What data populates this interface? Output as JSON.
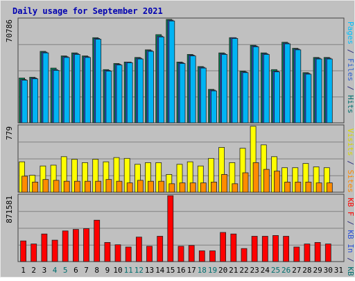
{
  "chart_data": [
    {
      "type": "bar",
      "title": "Daily usage for September 2021",
      "panel": "top",
      "ymax_label": "70786",
      "categories": [
        "1",
        "2",
        "3",
        "4",
        "5",
        "6",
        "7",
        "8",
        "9",
        "10",
        "11",
        "12",
        "13",
        "14",
        "15",
        "16",
        "17",
        "18",
        "19",
        "20",
        "21",
        "22",
        "23",
        "24",
        "25",
        "26",
        "27",
        "28",
        "29",
        "30",
        "31"
      ],
      "weekend_days": [
        "4",
        "5",
        "11",
        "12",
        "18",
        "19",
        "25",
        "26"
      ],
      "ylabel_parts": [
        {
          "text": "Pages",
          "color": "#00c0ff"
        },
        {
          "text": " / ",
          "color": "#303080"
        },
        {
          "text": "Files",
          "color": "#3060d0"
        },
        {
          "text": " / ",
          "color": "#303080"
        },
        {
          "text": "Hits",
          "color": "#006f6f"
        }
      ],
      "series": [
        {
          "color": "#008a5a",
          "values": [
            29500,
            30000,
            47000,
            36000,
            44000,
            46000,
            44000,
            56000,
            35000,
            39000,
            40000,
            43000,
            48000,
            58000,
            68000,
            40000,
            45000,
            37000,
            22000,
            46000,
            56000,
            34000,
            51000,
            46000,
            35000,
            53000,
            49000,
            33000,
            43000,
            43000,
            0
          ]
        },
        {
          "color": "#2a50d8",
          "values": [
            28500,
            29500,
            46500,
            35000,
            43500,
            45500,
            43500,
            55500,
            34500,
            38500,
            40000,
            42500,
            47500,
            57000,
            67500,
            39500,
            44500,
            36500,
            21500,
            45500,
            56000,
            33500,
            50500,
            45500,
            34000,
            52500,
            48500,
            32500,
            42500,
            42500,
            0
          ]
        },
        {
          "color": "#00b4f4",
          "values": [
            28000,
            29000,
            46000,
            34500,
            43000,
            45000,
            43000,
            55000,
            34000,
            38000,
            39500,
            42000,
            47000,
            56500,
            67000,
            39000,
            44000,
            36000,
            21000,
            45000,
            55500,
            33000,
            50000,
            45000,
            33500,
            52000,
            48000,
            32000,
            42000,
            42000,
            0
          ]
        }
      ]
    },
    {
      "type": "bar",
      "panel": "middle",
      "ymax_label": "779",
      "ylabel_parts": [
        {
          "text": "Visits",
          "color": "#d8d800"
        },
        {
          "text": " / ",
          "color": "#303080"
        },
        {
          "text": "Sites",
          "color": "#ff8800"
        }
      ],
      "series": [
        {
          "color": "#ffff00",
          "values": [
            360,
            200,
            310,
            320,
            420,
            390,
            350,
            390,
            360,
            410,
            400,
            330,
            350,
            350,
            210,
            330,
            360,
            310,
            400,
            530,
            350,
            520,
            780,
            560,
            420,
            290,
            290,
            340,
            300,
            290,
            0
          ]
        },
        {
          "color": "#ff8c00",
          "values": [
            190,
            120,
            150,
            140,
            130,
            130,
            130,
            130,
            150,
            130,
            110,
            140,
            130,
            130,
            100,
            110,
            110,
            110,
            120,
            210,
            100,
            230,
            350,
            270,
            250,
            120,
            120,
            120,
            110,
            110,
            0
          ]
        }
      ]
    },
    {
      "type": "bar",
      "panel": "bottom",
      "ymax_label": "871581",
      "ylabel_parts": [
        {
          "text": "KB F",
          "color": "#ff0000"
        },
        {
          "text": " / ",
          "color": "#303080"
        },
        {
          "text": "KB In",
          "color": "#2a50d8"
        },
        {
          "text": " / ",
          "color": "#303080"
        },
        {
          "text": "KB Out",
          "color": "#006f6f"
        }
      ],
      "series": [
        {
          "color": "#ff0000",
          "values": [
            270000,
            230000,
            360000,
            280000,
            400000,
            420000,
            430000,
            540000,
            250000,
            220000,
            190000,
            320000,
            200000,
            330000,
            860000,
            200000,
            210000,
            140000,
            140000,
            380000,
            360000,
            170000,
            330000,
            330000,
            340000,
            330000,
            190000,
            230000,
            250000,
            230000,
            0
          ]
        }
      ]
    }
  ]
}
